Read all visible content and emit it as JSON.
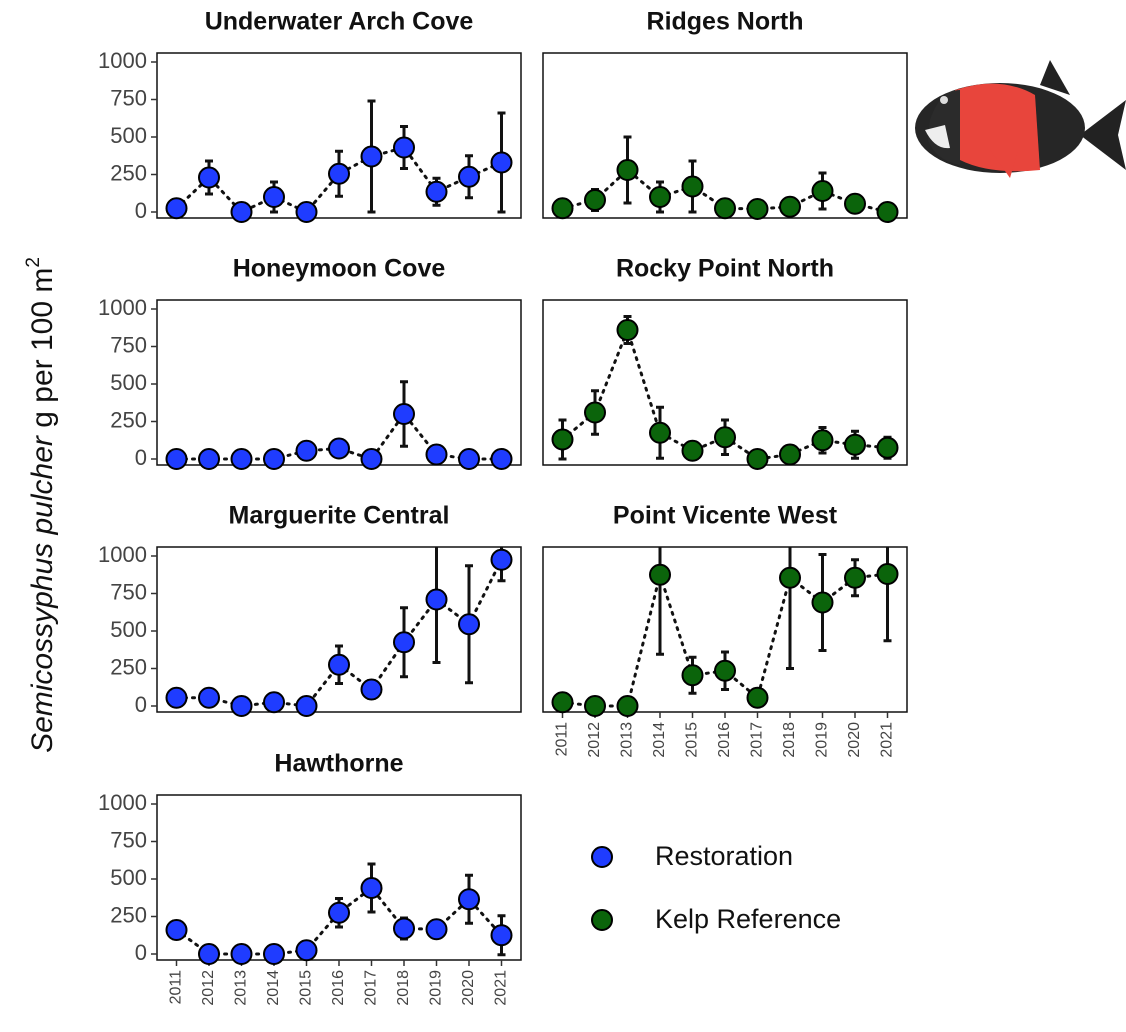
{
  "ylabel": {
    "species": "Semicossyphus pulcher",
    "unit": " g per 100 m",
    "exponent": "2"
  },
  "chart_data": [
    {
      "type": "errorbar-line",
      "title": "Underwater Arch Cove",
      "x": [
        2011,
        2012,
        2013,
        2014,
        2015,
        2016,
        2017,
        2018,
        2019,
        2020,
        2021
      ],
      "xlim": [
        2010.4,
        2021.6
      ],
      "ylim": [
        -40,
        1060
      ],
      "yticks": [
        0,
        250,
        500,
        750,
        1000
      ],
      "series": [
        {
          "name": "Restoration",
          "color": "#1f3cff",
          "values": [
            25,
            230,
            0,
            100,
            0,
            255,
            370,
            430,
            135,
            235,
            330
          ],
          "errors": [
            0,
            110,
            0,
            100,
            0,
            150,
            370,
            140,
            90,
            140,
            330
          ]
        }
      ]
    },
    {
      "type": "errorbar-line",
      "title": "Ridges North",
      "x": [
        2011,
        2012,
        2013,
        2014,
        2015,
        2016,
        2017,
        2018,
        2019,
        2020,
        2021
      ],
      "xlim": [
        2010.4,
        2021.6
      ],
      "ylim": [
        -40,
        1060
      ],
      "series": [
        {
          "name": "Kelp Reference",
          "color": "#0b640b",
          "values": [
            25,
            80,
            280,
            100,
            170,
            25,
            20,
            35,
            140,
            55,
            0
          ],
          "errors": [
            0,
            70,
            220,
            100,
            170,
            0,
            0,
            0,
            120,
            0,
            0
          ]
        }
      ]
    },
    {
      "type": "errorbar-line",
      "title": "Honeymoon Cove",
      "x": [
        2011,
        2012,
        2013,
        2014,
        2015,
        2016,
        2017,
        2018,
        2019,
        2020,
        2021
      ],
      "xlim": [
        2010.4,
        2021.6
      ],
      "ylim": [
        -40,
        1060
      ],
      "yticks": [
        0,
        250,
        500,
        750,
        1000
      ],
      "series": [
        {
          "name": "Restoration",
          "color": "#1f3cff",
          "values": [
            0,
            0,
            0,
            0,
            55,
            70,
            0,
            300,
            30,
            0,
            0
          ],
          "errors": [
            0,
            0,
            0,
            0,
            0,
            0,
            0,
            215,
            0,
            0,
            0
          ]
        }
      ]
    },
    {
      "type": "errorbar-line",
      "title": "Rocky Point North",
      "x": [
        2011,
        2012,
        2013,
        2014,
        2015,
        2016,
        2017,
        2018,
        2019,
        2020,
        2021
      ],
      "xlim": [
        2010.4,
        2021.6
      ],
      "ylim": [
        -40,
        1060
      ],
      "series": [
        {
          "name": "Kelp Reference",
          "color": "#0b640b",
          "values": [
            130,
            310,
            860,
            175,
            55,
            145,
            0,
            30,
            125,
            95,
            75
          ],
          "errors": [
            130,
            145,
            90,
            170,
            0,
            115,
            0,
            0,
            85,
            90,
            70
          ]
        }
      ]
    },
    {
      "type": "errorbar-line",
      "title": "Marguerite Central",
      "x": [
        2011,
        2012,
        2013,
        2014,
        2015,
        2016,
        2017,
        2018,
        2019,
        2020,
        2021
      ],
      "xlim": [
        2010.4,
        2021.6
      ],
      "ylim": [
        -40,
        1060
      ],
      "yticks": [
        0,
        250,
        500,
        750,
        1000
      ],
      "series": [
        {
          "name": "Restoration",
          "color": "#1f3cff",
          "values": [
            55,
            55,
            0,
            25,
            0,
            275,
            110,
            425,
            710,
            545,
            975
          ],
          "errors": [
            0,
            0,
            0,
            0,
            0,
            125,
            60,
            230,
            420,
            390,
            140
          ]
        }
      ]
    },
    {
      "type": "errorbar-line",
      "title": "Point Vicente West",
      "x": [
        2011,
        2012,
        2013,
        2014,
        2015,
        2016,
        2017,
        2018,
        2019,
        2020,
        2021
      ],
      "xlim": [
        2010.4,
        2021.6
      ],
      "ylim": [
        -40,
        1060
      ],
      "xticks": [
        2011,
        2012,
        2013,
        2014,
        2015,
        2016,
        2017,
        2018,
        2019,
        2020,
        2021
      ],
      "series": [
        {
          "name": "Kelp Reference",
          "color": "#0b640b",
          "values": [
            25,
            0,
            0,
            875,
            205,
            235,
            55,
            855,
            690,
            855,
            880
          ],
          "errors": [
            0,
            0,
            0,
            530,
            120,
            125,
            0,
            605,
            320,
            120,
            445
          ]
        }
      ]
    },
    {
      "type": "errorbar-line",
      "title": "Hawthorne",
      "x": [
        2011,
        2012,
        2013,
        2014,
        2015,
        2016,
        2017,
        2018,
        2019,
        2020,
        2021
      ],
      "xlim": [
        2010.4,
        2021.6
      ],
      "ylim": [
        -40,
        1060
      ],
      "yticks": [
        0,
        250,
        500,
        750,
        1000
      ],
      "xticks": [
        2011,
        2012,
        2013,
        2014,
        2015,
        2016,
        2017,
        2018,
        2019,
        2020,
        2021
      ],
      "series": [
        {
          "name": "Restoration",
          "color": "#1f3cff",
          "values": [
            160,
            0,
            0,
            0,
            25,
            275,
            440,
            170,
            165,
            365,
            125
          ],
          "errors": [
            60,
            0,
            0,
            0,
            0,
            95,
            160,
            70,
            55,
            160,
            130
          ]
        }
      ]
    }
  ]
}
